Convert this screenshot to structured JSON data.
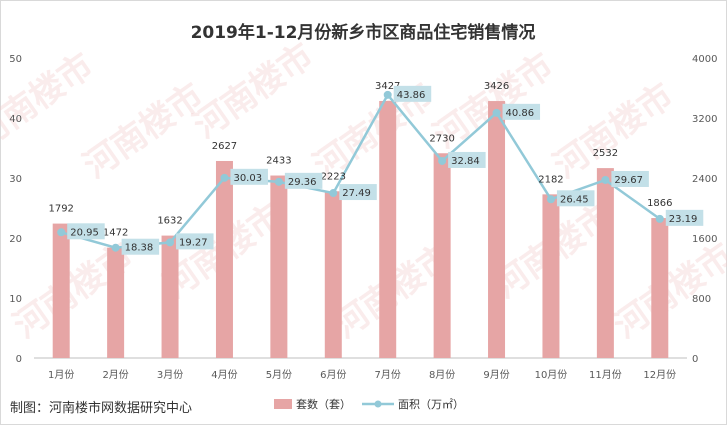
{
  "chart_data": {
    "type": "bar",
    "title": "2019年1-12月份新乡市区商品住宅销售情况",
    "categories": [
      "1月份",
      "2月份",
      "3月份",
      "4月份",
      "5月份",
      "6月份",
      "7月份",
      "8月份",
      "9月份",
      "10月份",
      "11月份",
      "12月份"
    ],
    "series": [
      {
        "name": "套数（套）",
        "type": "bar",
        "axis": "right",
        "values": [
          1792,
          1472,
          1632,
          2627,
          2433,
          2223,
          3427,
          2730,
          3426,
          2182,
          2532,
          1866
        ]
      },
      {
        "name": "面积（万㎡）",
        "type": "line",
        "axis": "left",
        "values": [
          20.95,
          18.38,
          19.27,
          30.03,
          29.36,
          27.49,
          43.86,
          32.84,
          40.86,
          26.45,
          29.67,
          23.19
        ]
      }
    ],
    "y_left": {
      "ticks": [
        "0",
        "10",
        "20",
        "30",
        "40",
        "50"
      ],
      "lim": [
        0,
        50
      ]
    },
    "y_right": {
      "ticks": [
        "0",
        "800",
        "1600",
        "2400",
        "3200",
        "4000"
      ],
      "lim": [
        0,
        4000
      ]
    },
    "grid": false,
    "legend": "bottom",
    "colors": {
      "bar": "#e6a5a5",
      "line": "#92c9d8",
      "label_box": "#c3e0e8"
    }
  },
  "footer": "制图：河南楼市网数据研究中心"
}
